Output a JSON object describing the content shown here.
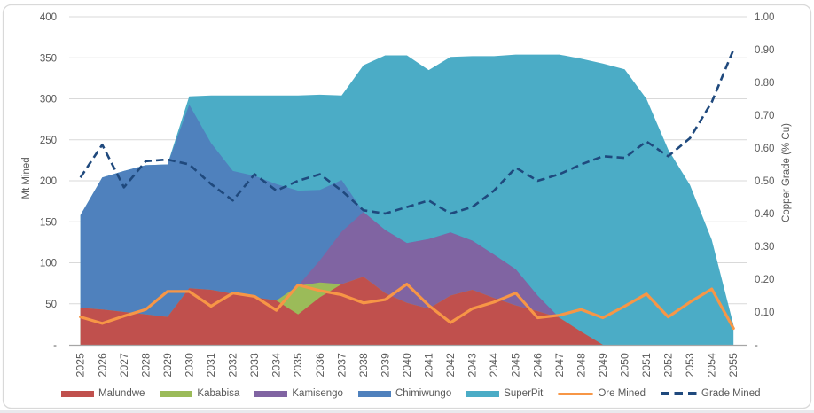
{
  "chart_data": {
    "type": "combo-stacked-area-line",
    "x": [
      2025,
      2026,
      2027,
      2028,
      2029,
      2030,
      2031,
      2032,
      2033,
      2034,
      2035,
      2036,
      2037,
      2038,
      2039,
      2040,
      2041,
      2042,
      2043,
      2044,
      2045,
      2046,
      2047,
      2048,
      2049,
      2050,
      2051,
      2052,
      2053,
      2054,
      2055
    ],
    "stacked_area_series": [
      {
        "name": "Malundwe",
        "color": "#C0504D",
        "values": [
          45,
          43,
          40,
          37,
          34,
          69,
          67,
          62,
          58,
          54,
          37,
          58,
          74,
          83,
          63,
          51,
          44,
          60,
          67,
          57,
          48,
          41,
          33,
          16,
          0,
          0,
          0,
          0,
          0,
          0,
          0
        ]
      },
      {
        "name": "Kababisa",
        "color": "#9BBB59",
        "values": [
          0,
          0,
          0,
          0,
          0,
          0,
          0,
          0,
          0,
          0,
          35,
          18,
          0,
          0,
          0,
          0,
          0,
          0,
          0,
          0,
          0,
          0,
          0,
          0,
          0,
          0,
          0,
          0,
          0,
          0,
          0
        ]
      },
      {
        "name": "Kamisengo",
        "color": "#8064A2",
        "values": [
          0,
          0,
          0,
          0,
          0,
          0,
          0,
          0,
          0,
          0,
          0,
          27,
          64,
          79,
          77,
          73,
          85,
          77,
          60,
          53,
          44,
          19,
          0,
          0,
          0,
          0,
          0,
          0,
          0,
          0,
          0
        ]
      },
      {
        "name": "Chimiwungo",
        "color": "#4F81BD",
        "values": [
          113,
          161,
          172,
          182,
          186,
          224,
          179,
          150,
          148,
          142,
          116,
          86,
          63,
          0,
          0,
          0,
          0,
          0,
          0,
          0,
          0,
          0,
          0,
          0,
          0,
          0,
          0,
          0,
          0,
          0,
          0
        ]
      },
      {
        "name": "SuperPit",
        "color": "#4BACC6",
        "values": [
          0,
          0,
          0,
          0,
          0,
          10,
          58,
          92,
          98,
          108,
          116,
          116,
          103,
          179,
          213,
          229,
          206,
          214,
          225,
          242,
          262,
          294,
          321,
          333,
          343,
          336,
          300,
          238,
          195,
          128,
          24
        ]
      }
    ],
    "line_series": [
      {
        "name": "Ore Mined",
        "color": "#F79646",
        "axis": "primary",
        "style": "solid",
        "values": [
          34,
          26,
          35,
          43,
          65,
          65,
          47,
          63,
          59,
          42,
          73,
          66,
          61,
          51,
          55,
          74,
          48,
          27,
          44,
          52,
          63,
          33,
          36,
          43,
          33,
          47,
          62,
          34,
          52,
          68,
          20
        ]
      },
      {
        "name": "Grade Mined",
        "color": "#1F497D",
        "axis": "secondary",
        "style": "dashed",
        "values": [
          0.51,
          0.61,
          0.48,
          0.56,
          0.565,
          0.55,
          0.49,
          0.44,
          0.52,
          0.47,
          0.5,
          0.52,
          0.47,
          0.41,
          0.4,
          0.42,
          0.44,
          0.4,
          0.42,
          0.47,
          0.54,
          0.5,
          0.52,
          0.55,
          0.575,
          0.57,
          0.62,
          0.575,
          0.63,
          0.74,
          0.9
        ]
      }
    ],
    "y_left_axis": {
      "title": "Mt Mined",
      "min": 0,
      "max": 400,
      "step": 50,
      "tick_labels": [
        "-",
        "50",
        "100",
        "150",
        "200",
        "250",
        "300",
        "350",
        "400"
      ]
    },
    "y_right_axis": {
      "title": "Copper Grade (% Cu)",
      "min": 0,
      "max": 1.0,
      "step": 0.1,
      "tick_labels": [
        "-",
        "0.10",
        "0.20",
        "0.30",
        "0.40",
        "0.50",
        "0.60",
        "0.70",
        "0.80",
        "0.90",
        "1.00"
      ]
    },
    "legend": [
      {
        "label": "Malundwe",
        "color": "#C0504D",
        "type": "area"
      },
      {
        "label": "Kababisa",
        "color": "#9BBB59",
        "type": "area"
      },
      {
        "label": "Kamisengo",
        "color": "#8064A2",
        "type": "area"
      },
      {
        "label": "Chimiwungo",
        "color": "#4F81BD",
        "type": "area"
      },
      {
        "label": "SuperPit",
        "color": "#4BACC6",
        "type": "area"
      },
      {
        "label": "Ore Mined",
        "color": "#F79646",
        "type": "line"
      },
      {
        "label": "Grade Mined",
        "color": "#1F497D",
        "type": "dashed-line"
      }
    ],
    "grid": true,
    "legend_position": "bottom",
    "colors": {
      "background": "#FFFFFF",
      "chart_border": "#D9D9D9",
      "gridline": "#D9D9D9",
      "axis_line": "#A6A6A6",
      "tick_text": "#595959"
    }
  }
}
